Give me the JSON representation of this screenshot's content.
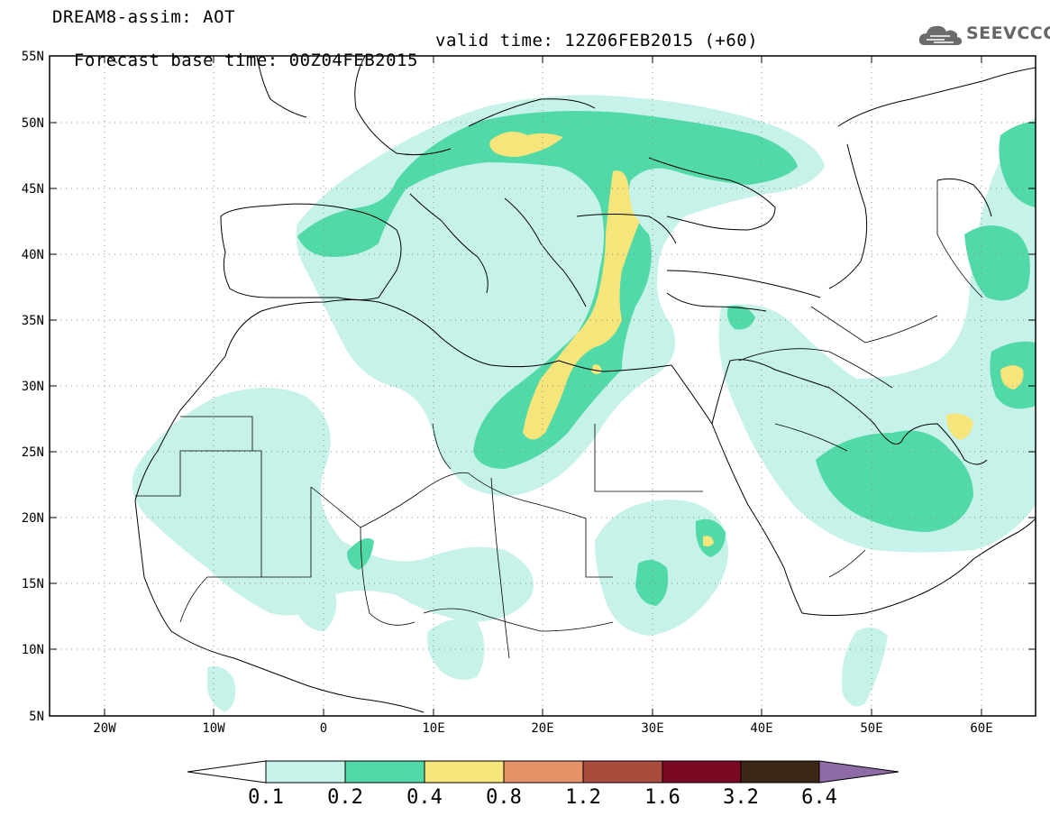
{
  "header": {
    "line1": "DREAM8-assim: AOT",
    "line2": "Forecast base time: 00Z04FEB2015",
    "valid": "valid time: 12Z06FEB2015 (+60)"
  },
  "logo": {
    "text": "SEEVCCC",
    "icon": "cloud-icon"
  },
  "lat_labels": [
    "55N",
    "50N",
    "45N",
    "40N",
    "35N",
    "30N",
    "25N",
    "20N",
    "15N",
    "10N",
    "5N"
  ],
  "lon_labels": [
    "20W",
    "10W",
    "0",
    "10E",
    "20E",
    "30E",
    "40E",
    "50E",
    "60E"
  ],
  "colorbar": {
    "labels": [
      "0.1",
      "0.2",
      "0.4",
      "0.8",
      "1.2",
      "1.6",
      "3.2",
      "6.4"
    ],
    "colors": [
      "#ffffff",
      "#c6f2ea",
      "#52d9a8",
      "#f5e57a",
      "#e8926a",
      "#a84c3e",
      "#7a0a24",
      "#3d2614",
      "#8e6aa6"
    ]
  },
  "colors": {
    "aot_0_1": "#c6f2ea",
    "aot_0_2": "#52d9a8",
    "aot_0_4": "#f5e57a"
  }
}
